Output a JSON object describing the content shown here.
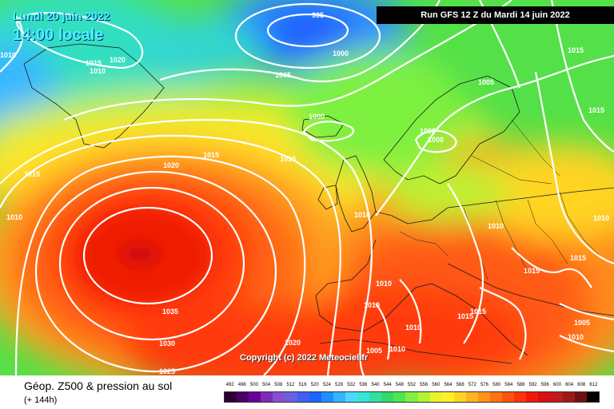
{
  "header": {
    "run_title": "Run GFS 12 Z du Mardi 14 juin 2022",
    "date": "Lundi 20 juin 2022",
    "time": "14:00 locale"
  },
  "copyright": "Copyright (c) 2022 Meteociel.fr",
  "legend": {
    "title": "Géop. Z500 & pression au sol",
    "subtitle": "(+ 144h)",
    "scale_values": [
      "492",
      "496",
      "500",
      "504",
      "508",
      "512",
      "516",
      "520",
      "524",
      "528",
      "532",
      "536",
      "540",
      "544",
      "548",
      "552",
      "556",
      "560",
      "564",
      "568",
      "572",
      "576",
      "580",
      "584",
      "588",
      "592",
      "596",
      "600",
      "604",
      "608",
      "612"
    ],
    "scale_colors": [
      "#2a0033",
      "#4b0066",
      "#6a0099",
      "#7d2ab8",
      "#8a4fd0",
      "#6a5fe0",
      "#3f5ff0",
      "#1a66ff",
      "#1f8fff",
      "#33b5ff",
      "#4dd9ff",
      "#33e6d9",
      "#33e0a0",
      "#33d966",
      "#4de64d",
      "#80f040",
      "#b3f533",
      "#e6f52e",
      "#fff02a",
      "#ffd424",
      "#ffb31f",
      "#ff9419",
      "#ff7314",
      "#ff520f",
      "#ff330a",
      "#f01a05",
      "#d90f0f",
      "#c21a1a",
      "#9e1a1a",
      "#6e1010",
      "#000000"
    ]
  },
  "map": {
    "isobar_labels": [
      {
        "text": "995"
      },
      {
        "text": "1000"
      },
      {
        "text": "1005"
      },
      {
        "text": "1010"
      },
      {
        "text": "1015"
      },
      {
        "text": "1020"
      },
      {
        "text": "1010"
      },
      {
        "text": "1015"
      },
      {
        "text": "1020"
      },
      {
        "text": "1000"
      },
      {
        "text": "1015"
      },
      {
        "text": "1010"
      },
      {
        "text": "1010"
      },
      {
        "text": "1005"
      },
      {
        "text": "1015"
      },
      {
        "text": "1000"
      },
      {
        "text": "1000"
      },
      {
        "text": "1010"
      },
      {
        "text": "1010"
      },
      {
        "text": "1015"
      },
      {
        "text": "1015"
      },
      {
        "text": "1010"
      },
      {
        "text": "1015"
      },
      {
        "text": "1005"
      },
      {
        "text": "1010"
      },
      {
        "text": "1010"
      },
      {
        "text": "1010"
      },
      {
        "text": "1010"
      },
      {
        "text": "1035"
      },
      {
        "text": "1030"
      },
      {
        "text": "1025"
      },
      {
        "text": "1020"
      },
      {
        "text": "1015"
      },
      {
        "text": "1010"
      },
      {
        "text": "1015"
      },
      {
        "text": "1005"
      }
    ]
  }
}
